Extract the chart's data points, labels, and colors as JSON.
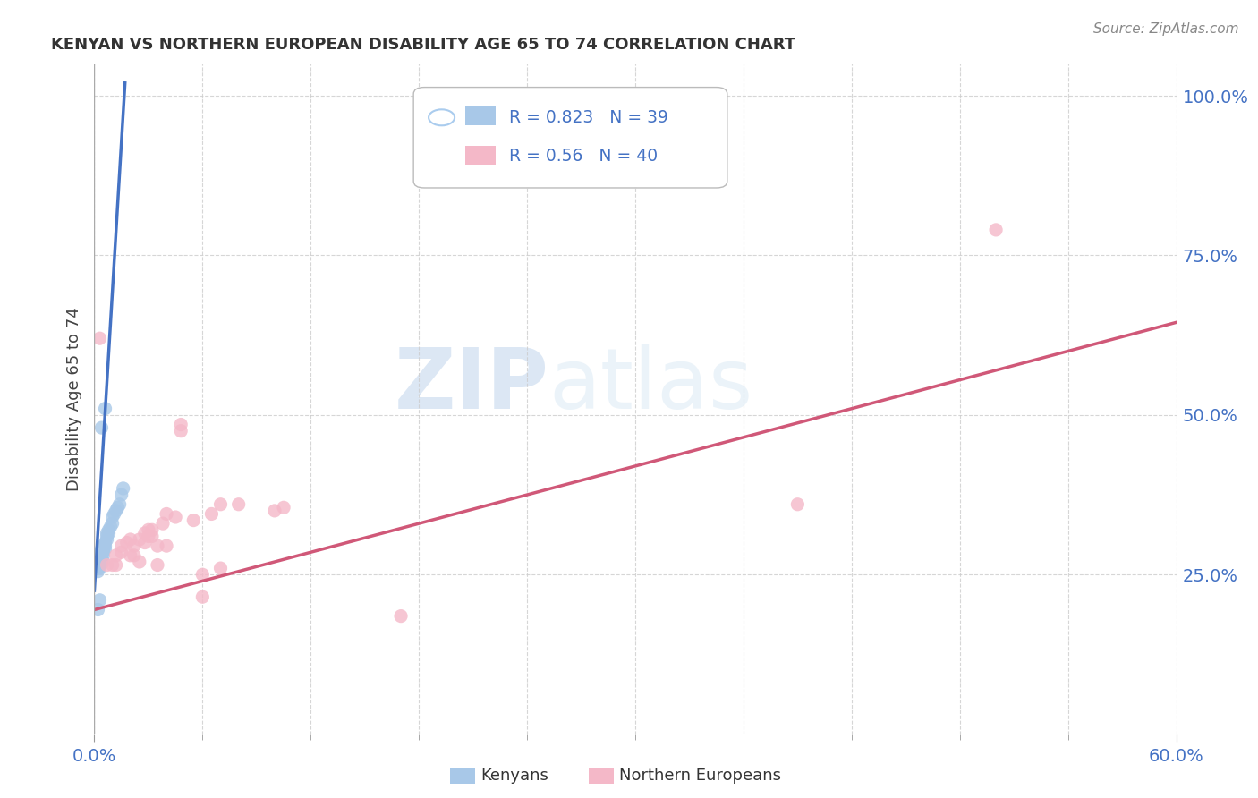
{
  "title": "KENYAN VS NORTHERN EUROPEAN DISABILITY AGE 65 TO 74 CORRELATION CHART",
  "source": "Source: ZipAtlas.com",
  "ylabel": "Disability Age 65 to 74",
  "xmin": 0.0,
  "xmax": 0.6,
  "ymin": 0.0,
  "ymax": 1.05,
  "ytick_right": [
    0.25,
    0.5,
    0.75,
    1.0
  ],
  "ytick_right_labels": [
    "25.0%",
    "50.0%",
    "75.0%",
    "100.0%"
  ],
  "kenyan_color": "#a8c8e8",
  "kenyan_color_line": "#4472c4",
  "northern_color": "#f4b8c8",
  "northern_color_line": "#d05878",
  "kenyan_R": 0.823,
  "kenyan_N": 39,
  "northern_R": 0.56,
  "northern_N": 40,
  "watermark_ZIP": "ZIP",
  "watermark_atlas": "atlas",
  "bg_color": "#ffffff",
  "kenyan_scatter": [
    [
      0.001,
      0.26
    ],
    [
      0.001,
      0.28
    ],
    [
      0.002,
      0.26
    ],
    [
      0.002,
      0.27
    ],
    [
      0.002,
      0.255
    ],
    [
      0.003,
      0.265
    ],
    [
      0.003,
      0.27
    ],
    [
      0.003,
      0.275
    ],
    [
      0.003,
      0.26
    ],
    [
      0.004,
      0.27
    ],
    [
      0.004,
      0.275
    ],
    [
      0.004,
      0.29
    ],
    [
      0.004,
      0.28
    ],
    [
      0.005,
      0.27
    ],
    [
      0.005,
      0.28
    ],
    [
      0.005,
      0.29
    ],
    [
      0.005,
      0.285
    ],
    [
      0.005,
      0.295
    ],
    [
      0.006,
      0.29
    ],
    [
      0.006,
      0.295
    ],
    [
      0.006,
      0.3
    ],
    [
      0.007,
      0.305
    ],
    [
      0.007,
      0.31
    ],
    [
      0.007,
      0.315
    ],
    [
      0.008,
      0.315
    ],
    [
      0.008,
      0.32
    ],
    [
      0.009,
      0.325
    ],
    [
      0.01,
      0.33
    ],
    [
      0.01,
      0.34
    ],
    [
      0.011,
      0.345
    ],
    [
      0.012,
      0.35
    ],
    [
      0.013,
      0.355
    ],
    [
      0.014,
      0.36
    ],
    [
      0.015,
      0.375
    ],
    [
      0.016,
      0.385
    ],
    [
      0.004,
      0.48
    ],
    [
      0.006,
      0.51
    ],
    [
      0.002,
      0.195
    ],
    [
      0.003,
      0.21
    ]
  ],
  "northern_scatter": [
    [
      0.003,
      0.62
    ],
    [
      0.007,
      0.265
    ],
    [
      0.01,
      0.265
    ],
    [
      0.012,
      0.265
    ],
    [
      0.012,
      0.28
    ],
    [
      0.015,
      0.285
    ],
    [
      0.015,
      0.295
    ],
    [
      0.018,
      0.3
    ],
    [
      0.02,
      0.305
    ],
    [
      0.02,
      0.28
    ],
    [
      0.022,
      0.295
    ],
    [
      0.022,
      0.28
    ],
    [
      0.025,
      0.305
    ],
    [
      0.025,
      0.27
    ],
    [
      0.028,
      0.3
    ],
    [
      0.028,
      0.315
    ],
    [
      0.03,
      0.32
    ],
    [
      0.03,
      0.31
    ],
    [
      0.032,
      0.31
    ],
    [
      0.032,
      0.32
    ],
    [
      0.035,
      0.295
    ],
    [
      0.035,
      0.265
    ],
    [
      0.038,
      0.33
    ],
    [
      0.04,
      0.295
    ],
    [
      0.04,
      0.345
    ],
    [
      0.045,
      0.34
    ],
    [
      0.048,
      0.475
    ],
    [
      0.048,
      0.485
    ],
    [
      0.055,
      0.335
    ],
    [
      0.06,
      0.215
    ],
    [
      0.06,
      0.25
    ],
    [
      0.065,
      0.345
    ],
    [
      0.07,
      0.36
    ],
    [
      0.07,
      0.26
    ],
    [
      0.08,
      0.36
    ],
    [
      0.1,
      0.35
    ],
    [
      0.105,
      0.355
    ],
    [
      0.17,
      0.185
    ],
    [
      0.39,
      0.36
    ],
    [
      0.5,
      0.79
    ]
  ]
}
